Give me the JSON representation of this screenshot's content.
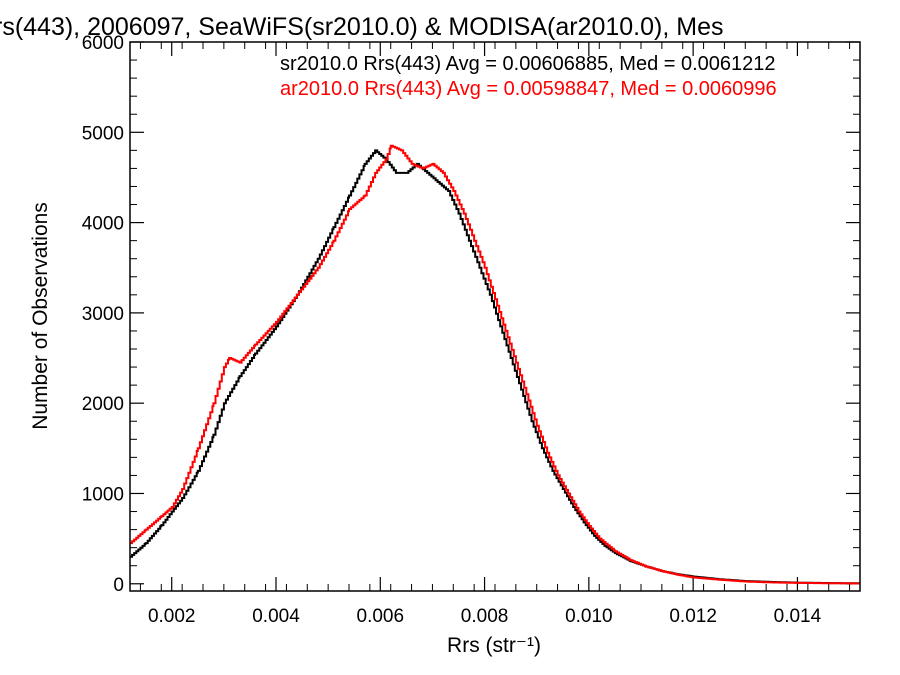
{
  "chart_data": {
    "type": "line",
    "title": "rs(443), 2006097, SeaWiFS(sr2010.0) & MODISA(ar2010.0), Mes",
    "xlabel": "Rrs (str⁻¹)",
    "ylabel": "Number of Observations",
    "xlim": [
      0.0012,
      0.0152
    ],
    "ylim": [
      -80,
      6000
    ],
    "x_ticks": [
      0.002,
      0.004,
      0.006,
      0.008,
      0.01,
      0.012,
      0.014
    ],
    "x_tick_labels": [
      "0.002",
      "0.004",
      "0.006",
      "0.008",
      "0.010",
      "0.012",
      "0.014"
    ],
    "y_ticks": [
      0,
      1000,
      2000,
      3000,
      4000,
      5000,
      6000
    ],
    "y_tick_labels": [
      "0",
      "1000",
      "2000",
      "3000",
      "4000",
      "5000",
      "6000"
    ],
    "grid": false,
    "legend_placement": "top-right",
    "series": [
      {
        "name": "sr2010.0 Rrs(443) Avg = 0.00606885, Med = 0.0061212",
        "color": "#000000",
        "x": [
          0.0012,
          0.0015,
          0.0018,
          0.002,
          0.0022,
          0.0025,
          0.0028,
          0.003,
          0.0033,
          0.0036,
          0.004,
          0.0044,
          0.0048,
          0.0051,
          0.0054,
          0.0057,
          0.0059,
          0.0061,
          0.0063,
          0.0065,
          0.0067,
          0.0069,
          0.0071,
          0.0073,
          0.0075,
          0.0077,
          0.0079,
          0.0081,
          0.0083,
          0.0085,
          0.0087,
          0.0089,
          0.0091,
          0.0093,
          0.0095,
          0.0097,
          0.0099,
          0.0101,
          0.0103,
          0.0105,
          0.0108,
          0.0111,
          0.0114,
          0.0117,
          0.012,
          0.0125,
          0.013,
          0.0135,
          0.014,
          0.0146,
          0.0152
        ],
        "y": [
          300,
          450,
          650,
          800,
          950,
          1250,
          1650,
          2000,
          2300,
          2550,
          2850,
          3200,
          3600,
          3950,
          4300,
          4650,
          4800,
          4700,
          4550,
          4550,
          4650,
          4550,
          4450,
          4350,
          4100,
          3800,
          3500,
          3200,
          2850,
          2500,
          2150,
          1800,
          1500,
          1250,
          1050,
          850,
          680,
          530,
          420,
          340,
          250,
          190,
          140,
          105,
          80,
          50,
          30,
          20,
          12,
          8,
          5
        ]
      },
      {
        "name": "ar2010.0 Rrs(443) Avg = 0.00598847, Med = 0.0060996",
        "color": "#ff0000",
        "x": [
          0.0012,
          0.0015,
          0.0018,
          0.002,
          0.0022,
          0.0025,
          0.0028,
          0.003,
          0.0031,
          0.0033,
          0.0036,
          0.004,
          0.0044,
          0.0048,
          0.0051,
          0.0054,
          0.0057,
          0.0059,
          0.0061,
          0.0062,
          0.0064,
          0.0066,
          0.0068,
          0.007,
          0.0072,
          0.0074,
          0.0076,
          0.0078,
          0.008,
          0.0082,
          0.0084,
          0.0086,
          0.0088,
          0.009,
          0.0092,
          0.0094,
          0.0096,
          0.0098,
          0.01,
          0.0102,
          0.0105,
          0.0108,
          0.0111,
          0.0114,
          0.0117,
          0.012,
          0.0125,
          0.013,
          0.0135,
          0.014,
          0.0146,
          0.0152
        ],
        "y": [
          450,
          600,
          750,
          850,
          1050,
          1500,
          2000,
          2400,
          2500,
          2450,
          2650,
          2900,
          3200,
          3500,
          3800,
          4150,
          4300,
          4550,
          4700,
          4850,
          4800,
          4650,
          4600,
          4650,
          4550,
          4350,
          4100,
          3800,
          3500,
          3150,
          2800,
          2450,
          2100,
          1750,
          1450,
          1200,
          1000,
          800,
          640,
          500,
          360,
          260,
          190,
          140,
          100,
          70,
          45,
          25,
          15,
          10,
          6,
          4
        ]
      }
    ]
  }
}
